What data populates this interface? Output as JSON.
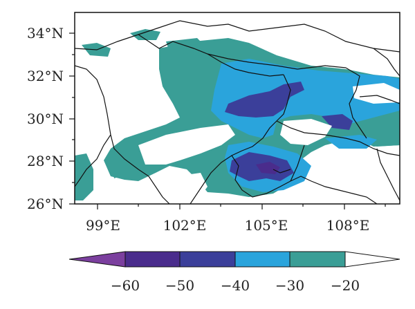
{
  "map": {
    "lat_ticks": [
      "34°N",
      "32°N",
      "30°N",
      "28°N",
      "26°N"
    ],
    "lon_ticks": [
      "99°E",
      "102°E",
      "105°E",
      "108°E"
    ]
  },
  "colorbar": {
    "labels": [
      "−60",
      "−50",
      "−40",
      "−30",
      "−20"
    ],
    "bins": [
      {
        "range": "< -60",
        "color": "#7b3f9e"
      },
      {
        "range": "-60 to -50",
        "color": "#4a2c8c"
      },
      {
        "range": "-50 to -40",
        "color": "#3b3f9a"
      },
      {
        "range": "-40 to -30",
        "color": "#2aa4dc"
      },
      {
        "range": "-30 to -20",
        "color": "#3a9e96"
      },
      {
        "range": "> -20",
        "color": "#ffffff"
      }
    ]
  },
  "colors": {
    "teal": "#3a9e96",
    "blue": "#2aa4dc",
    "indigo": "#3b3f9a",
    "purple": "#4a2c8c",
    "magenta": "#7b3f9e",
    "border": "#111111"
  }
}
